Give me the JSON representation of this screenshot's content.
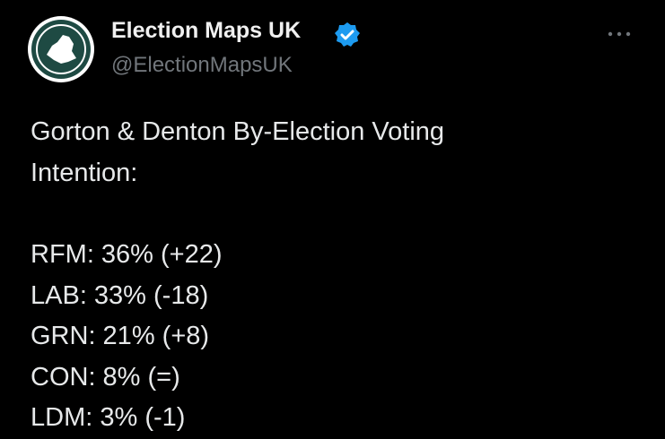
{
  "author": {
    "name": "Election Maps UK",
    "handle": "@ElectionMapsUK"
  },
  "tweet": {
    "heading": "Gorton & Denton By-Election Voting Intention:",
    "lines": [
      "RFM: 36% (+22)",
      "LAB: 33% (-18)",
      "GRN: 21% (+8)",
      "CON: 8% (=)",
      "LDM: 3% (-1)"
    ]
  }
}
